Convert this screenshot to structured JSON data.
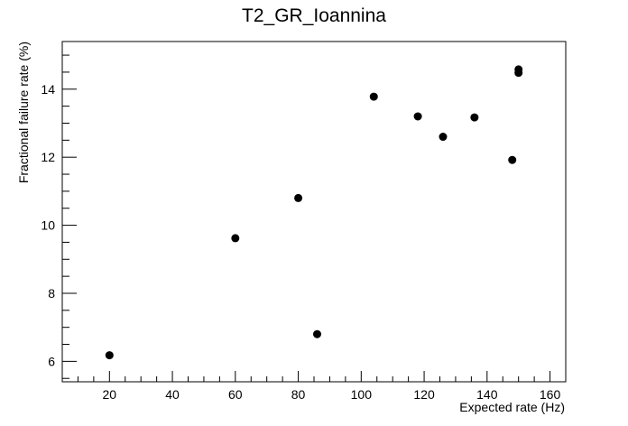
{
  "chart_data": {
    "type": "scatter",
    "title": "T2_GR_Ioannina",
    "xlabel": "Expected rate (Hz)",
    "ylabel": "Fractional failure rate (%)",
    "xlim": [
      5,
      165
    ],
    "ylim": [
      5.4,
      15.4
    ],
    "xticks": [
      20,
      40,
      60,
      80,
      100,
      120,
      140,
      160
    ],
    "yticks": [
      6,
      8,
      10,
      12,
      14
    ],
    "grid": false,
    "marker_color": "#000000",
    "points": [
      {
        "x": 20,
        "y": 6.18
      },
      {
        "x": 60,
        "y": 9.62
      },
      {
        "x": 80,
        "y": 10.8
      },
      {
        "x": 86,
        "y": 6.8
      },
      {
        "x": 104,
        "y": 13.78
      },
      {
        "x": 118,
        "y": 13.2
      },
      {
        "x": 126,
        "y": 12.6
      },
      {
        "x": 136,
        "y": 13.17
      },
      {
        "x": 148,
        "y": 11.92
      },
      {
        "x": 150,
        "y": 14.48
      },
      {
        "x": 150,
        "y": 14.58
      }
    ]
  }
}
